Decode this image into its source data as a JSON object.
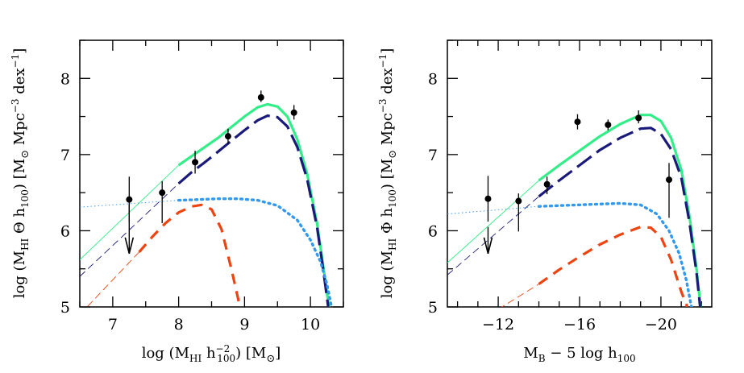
{
  "chart_data": [
    {
      "type": "line",
      "xlabel": "log (M_HI h_100^-2) [M_⊙]",
      "ylabel": "log (M_HI Θ h_100) [M_⊙ Mpc^-3 dex^-1]",
      "xlim": [
        6.5,
        10.5
      ],
      "ylim": [
        5,
        8.5
      ],
      "x_reversed": false,
      "xticks": [
        7,
        8,
        9,
        10
      ],
      "xtick_labels": [
        "7",
        "8",
        "9",
        "10"
      ],
      "yticks": [
        5,
        6,
        7,
        8
      ],
      "ytick_labels": [
        "5",
        "6",
        "7",
        "8"
      ],
      "series": [
        {
          "style": "solid",
          "color": "#33ee88",
          "x": [
            8.0,
            8.2,
            8.4,
            8.6,
            8.8,
            9.0,
            9.2,
            9.35,
            9.5,
            9.65,
            9.8,
            9.95,
            10.1,
            10.2,
            10.28
          ],
          "y": [
            6.86,
            6.98,
            7.1,
            7.22,
            7.36,
            7.5,
            7.62,
            7.66,
            7.63,
            7.5,
            7.2,
            6.75,
            6.1,
            5.5,
            5.0
          ],
          "x_ext": [
            6.5,
            8.0
          ],
          "y_ext": [
            5.62,
            6.86
          ]
        },
        {
          "style": "long-dash",
          "color": "#1a1a7a",
          "x": [
            8.0,
            8.2,
            8.4,
            8.6,
            8.8,
            9.0,
            9.2,
            9.35,
            9.5,
            9.65,
            9.8,
            9.95,
            10.1,
            10.2,
            10.27
          ],
          "y": [
            6.62,
            6.77,
            6.9,
            7.04,
            7.18,
            7.32,
            7.45,
            7.51,
            7.49,
            7.37,
            7.1,
            6.68,
            6.05,
            5.45,
            5.0
          ],
          "x_ext": [
            6.5,
            8.0
          ],
          "y_ext": [
            5.4,
            6.62
          ]
        },
        {
          "style": "dotted",
          "color": "#3399ee",
          "x": [
            8.0,
            8.3,
            8.6,
            8.9,
            9.2,
            9.5,
            9.8,
            10.0,
            10.15,
            10.25,
            10.32
          ],
          "y": [
            6.4,
            6.41,
            6.42,
            6.42,
            6.4,
            6.33,
            6.14,
            5.88,
            5.6,
            5.3,
            5.0
          ],
          "x_ext": [
            6.5,
            8.0
          ],
          "y_ext": [
            6.31,
            6.4
          ]
        },
        {
          "style": "short-dash",
          "color": "#ee4411",
          "x": [
            7.4,
            7.6,
            7.8,
            8.0,
            8.2,
            8.35,
            8.5,
            8.65,
            8.8,
            8.93
          ],
          "y": [
            5.72,
            5.92,
            6.1,
            6.24,
            6.32,
            6.34,
            6.28,
            6.02,
            5.5,
            5.0
          ],
          "x_ext": [
            6.5,
            7.4
          ],
          "y_ext": [
            4.9,
            5.72
          ]
        }
      ],
      "points": {
        "x": [
          7.25,
          7.75,
          8.25,
          8.75,
          9.25,
          9.75
        ],
        "y": [
          6.41,
          6.5,
          6.9,
          7.24,
          7.75,
          7.55
        ],
        "err_lo": [
          0.3,
          0.4,
          0.15,
          0.1,
          0.06,
          0.09
        ],
        "err_hi": [
          0.3,
          0.15,
          0.15,
          0.1,
          0.09,
          0.1
        ]
      },
      "upper_limit": {
        "x": 7.25,
        "y_from": 6.35,
        "y_to": 5.7
      }
    },
    {
      "type": "line",
      "xlabel": "M_B − 5 log h_100",
      "ylabel": "log (M_HI Φ h_100) [M_⊙ Mpc^-3 dex^-1]",
      "xlim": [
        -9.5,
        -22.5
      ],
      "ylim": [
        5,
        8.5
      ],
      "x_reversed": true,
      "xticks": [
        -12,
        -16,
        -20
      ],
      "xtick_labels": [
        "−12",
        "−16",
        "−20"
      ],
      "yticks": [
        5,
        6,
        7,
        8
      ],
      "ytick_labels": [
        "5",
        "6",
        "7",
        "8"
      ],
      "series": [
        {
          "style": "solid",
          "color": "#33ee88",
          "x": [
            -14.0,
            -15.0,
            -16.0,
            -17.0,
            -18.0,
            -19.0,
            -19.5,
            -20.0,
            -20.5,
            -21.0,
            -21.4,
            -21.75,
            -21.95
          ],
          "y": [
            6.66,
            6.86,
            7.05,
            7.24,
            7.4,
            7.52,
            7.52,
            7.44,
            7.22,
            6.8,
            6.2,
            5.5,
            5.0
          ],
          "x_ext": [
            -9.5,
            -14.0
          ],
          "y_ext": [
            5.58,
            6.66
          ]
        },
        {
          "style": "long-dash",
          "color": "#1a1a7a",
          "x": [
            -14.0,
            -15.0,
            -16.0,
            -17.0,
            -18.0,
            -19.0,
            -19.5,
            -20.0,
            -20.5,
            -21.0,
            -21.4,
            -21.75,
            -21.93
          ],
          "y": [
            6.45,
            6.66,
            6.86,
            7.06,
            7.22,
            7.34,
            7.35,
            7.27,
            7.07,
            6.7,
            6.12,
            5.45,
            5.0
          ],
          "x_ext": [
            -9.5,
            -14.0
          ],
          "y_ext": [
            5.42,
            6.45
          ]
        },
        {
          "style": "dotted",
          "color": "#3399ee",
          "x": [
            -14.0,
            -15.0,
            -16.0,
            -17.0,
            -18.0,
            -19.0,
            -19.8,
            -20.4,
            -20.9,
            -21.25,
            -21.5
          ],
          "y": [
            6.32,
            6.33,
            6.34,
            6.35,
            6.36,
            6.34,
            6.22,
            6.0,
            5.7,
            5.35,
            5.0
          ],
          "x_ext": [
            -9.5,
            -14.0
          ],
          "y_ext": [
            6.22,
            6.32
          ]
        },
        {
          "style": "short-dash",
          "color": "#ee4411",
          "x": [
            -14.0,
            -15.0,
            -16.0,
            -17.0,
            -18.0,
            -19.0,
            -19.5,
            -20.0,
            -20.5,
            -21.0,
            -21.3
          ],
          "y": [
            5.3,
            5.49,
            5.66,
            5.82,
            5.95,
            6.05,
            6.04,
            5.92,
            5.62,
            5.2,
            5.0
          ],
          "x_ext": [
            -12.0,
            -14.0
          ],
          "y_ext": [
            4.97,
            5.3
          ]
        }
      ],
      "points": {
        "x": [
          -11.5,
          -13.0,
          -14.4,
          -15.9,
          -17.4,
          -18.9,
          -20.4
        ],
        "y": [
          6.42,
          6.39,
          6.61,
          7.43,
          7.39,
          7.48,
          6.67
        ],
        "err_lo": [
          0.3,
          0.4,
          0.13,
          0.1,
          0.07,
          0.07,
          0.5
        ],
        "err_hi": [
          0.3,
          0.1,
          0.1,
          0.1,
          0.07,
          0.1,
          0.22
        ]
      },
      "upper_limit": {
        "x": -11.5,
        "y_from": 6.05,
        "y_to": 5.7
      }
    }
  ],
  "labels": {
    "left_ylabel_main": "log (M",
    "left_ylabel_sub": "HI",
    "left_ylabel_mid": " Θ h",
    "left_ylabel_sub2": "100",
    "left_ylabel_unit": ") [M",
    "left_ylabel_sun": "⊙",
    "left_ylabel_tail": " Mpc",
    "left_ylabel_exp1": "−3",
    "left_ylabel_dex": " dex",
    "left_ylabel_exp2": "−1",
    "left_ylabel_end": "]",
    "right_ylabel_mid": " Φ h",
    "left_xlabel_a": "log (M",
    "left_xlabel_sub": "HI",
    "left_xlabel_b": " h",
    "left_xlabel_exp": "−2",
    "left_xlabel_sub2": "100",
    "left_xlabel_c": ") [M",
    "left_xlabel_sun": "⊙",
    "left_xlabel_end": "]",
    "right_xlabel_a": "M",
    "right_xlabel_sub": "B",
    "right_xlabel_b": " − 5 log h",
    "right_xlabel_sub2": "100"
  }
}
